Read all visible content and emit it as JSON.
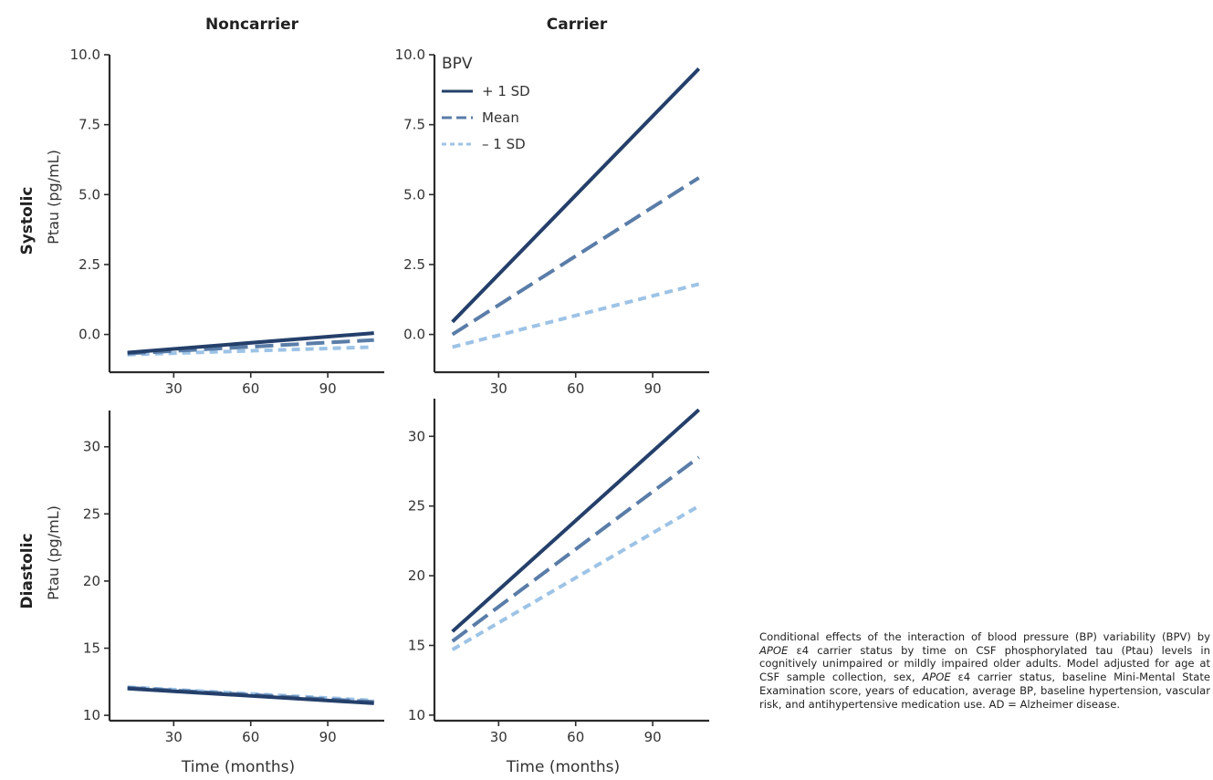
{
  "column_titles": [
    "Noncarrier",
    "Carrier"
  ],
  "row_titles": [
    "Systolic",
    "Diastolic"
  ],
  "ylabel": "Ptau (pg/mL)",
  "xlabel": "Time (months)",
  "legend": {
    "title": "BPV",
    "entries": [
      "+ 1 SD",
      "Mean",
      "– 1 SD"
    ]
  },
  "colors": {
    "plus_1sd": "#243f6a",
    "mean": "#5a7da8",
    "minus_1sd": "#9dc3e6"
  },
  "caption": {
    "parts": [
      {
        "text": "Conditional effects of the interaction of blood pressure (BP) variability (BPV) by "
      },
      {
        "text": "APOE",
        "italic": true
      },
      {
        "text": " ε4 carrier status by time on CSF phosphorylated tau (Ptau) levels in cognitively unimpaired or mildly impaired older adults. Model adjusted for age at CSF sample collection, sex, "
      },
      {
        "text": "APOE",
        "italic": true
      },
      {
        "text": " ε4 carrier status, baseline Mini-Mental State Examination score, years of education, average BP, baseline hypertension, vascular risk, and antihypertensive medication use. AD = Alzheimer disease."
      }
    ]
  },
  "chart_data": [
    {
      "type": "line",
      "panel": "Systolic / Noncarrier",
      "xlim": [
        5,
        112
      ],
      "ylim": [
        -1.35,
        10
      ],
      "xticks": [
        30,
        60,
        90
      ],
      "xtick_labels": [
        "30",
        "60",
        "90"
      ],
      "yticks": [
        0,
        2.5,
        5,
        7.5,
        10
      ],
      "ytick_labels": [
        "0.0",
        "2.5",
        "5.0",
        "7.5",
        "10.0"
      ],
      "x": [
        12,
        108
      ],
      "series": [
        {
          "name": "+ 1 SD",
          "values": [
            -0.65,
            0.05
          ]
        },
        {
          "name": "Mean",
          "values": [
            -0.68,
            -0.2
          ]
        },
        {
          "name": "– 1 SD",
          "values": [
            -0.72,
            -0.45
          ]
        }
      ]
    },
    {
      "type": "line",
      "panel": "Systolic / Carrier",
      "xlim": [
        5,
        112
      ],
      "ylim": [
        -1.35,
        10
      ],
      "xticks": [
        30,
        60,
        90
      ],
      "xtick_labels": [
        "30",
        "60",
        "90"
      ],
      "yticks": [
        0,
        2.5,
        5,
        7.5,
        10
      ],
      "ytick_labels": [
        "0.0",
        "2.5",
        "5.0",
        "7.5",
        "10.0"
      ],
      "x": [
        12,
        108
      ],
      "series": [
        {
          "name": "+ 1 SD",
          "values": [
            0.45,
            9.5
          ]
        },
        {
          "name": "Mean",
          "values": [
            0.0,
            5.6
          ]
        },
        {
          "name": "– 1 SD",
          "values": [
            -0.45,
            1.8
          ]
        }
      ]
    },
    {
      "type": "line",
      "panel": "Diastolic / Noncarrier",
      "xlim": [
        5,
        112
      ],
      "ylim": [
        9.6,
        32.7
      ],
      "xticks": [
        30,
        60,
        90
      ],
      "xtick_labels": [
        "30",
        "60",
        "90"
      ],
      "yticks": [
        10,
        15,
        20,
        25,
        30
      ],
      "ytick_labels": [
        "10",
        "15",
        "20",
        "25",
        "30"
      ],
      "x": [
        12,
        108
      ],
      "series": [
        {
          "name": "+ 1 SD",
          "values": [
            12.0,
            10.9
          ]
        },
        {
          "name": "Mean",
          "values": [
            12.05,
            11.0
          ]
        },
        {
          "name": "– 1 SD",
          "values": [
            12.1,
            11.1
          ]
        }
      ]
    },
    {
      "type": "line",
      "panel": "Diastolic / Carrier",
      "xlim": [
        5,
        112
      ],
      "ylim": [
        9.6,
        32.7
      ],
      "xticks": [
        30,
        60,
        90
      ],
      "xtick_labels": [
        "30",
        "60",
        "90"
      ],
      "yticks": [
        10,
        15,
        20,
        25,
        30
      ],
      "ytick_labels": [
        "10",
        "15",
        "20",
        "25",
        "30"
      ],
      "x": [
        12,
        108
      ],
      "series": [
        {
          "name": "+ 1 SD",
          "values": [
            16.0,
            31.9
          ]
        },
        {
          "name": "Mean",
          "values": [
            15.3,
            28.5
          ]
        },
        {
          "name": "– 1 SD",
          "values": [
            14.7,
            25.0
          ]
        }
      ]
    }
  ]
}
